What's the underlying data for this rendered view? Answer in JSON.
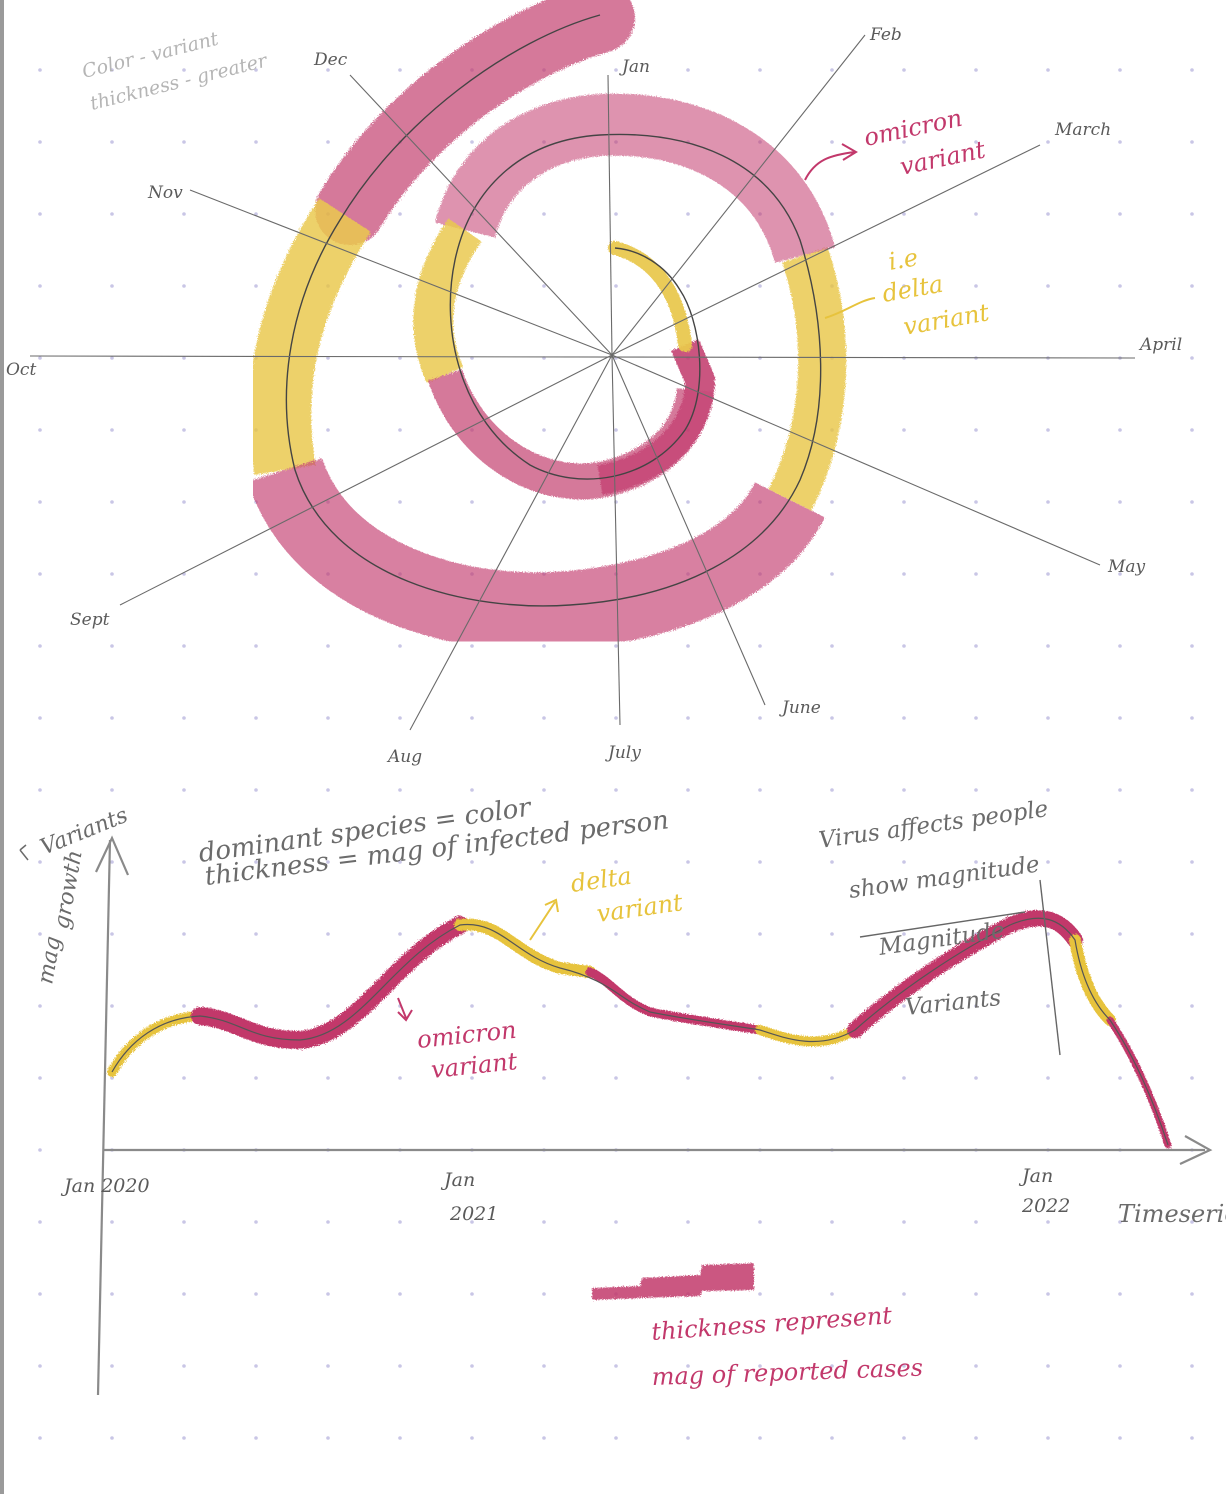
{
  "colors": {
    "omicron": "#c2386b",
    "delta": "#e7c33c",
    "pencil": "#666666",
    "dot_grid": "#c9c6e6"
  },
  "spiral": {
    "notes": [
      "Color - variant",
      "thickness - greater"
    ],
    "months": [
      "Jan",
      "Feb",
      "March",
      "April",
      "May",
      "June",
      "July",
      "Aug",
      "Sept",
      "Oct",
      "Nov",
      "Dec"
    ],
    "labels": {
      "omicron_line1": "omicron",
      "omicron_line2": "variant",
      "delta_line1": "i.e",
      "delta_line2": "delta",
      "delta_line3": "variant"
    }
  },
  "legend_note": {
    "line1": "dominant species = color",
    "line2": "thickness = mag of infected person"
  },
  "line_chart": {
    "y_label_line1": "growth",
    "y_label_line2": "mag",
    "y_arrow_label": "Variants",
    "x_title": "Timeseries",
    "x_ticks": [
      {
        "line1": "Jan 2020",
        "line2": ""
      },
      {
        "line1": "Jan",
        "line2": "2021"
      },
      {
        "line1": "Jan",
        "line2": "2022"
      }
    ],
    "delta_label_line1": "delta",
    "delta_label_line2": "variant",
    "omicron_label_line1": "omicron",
    "omicron_label_line2": "variant",
    "right_note_line1": "Virus affects people",
    "right_note_line2": "show magnitude",
    "right_note_line3": "Magnitude",
    "right_note_line4": "Variants"
  },
  "thickness_legend": {
    "line1": "thickness represent",
    "line2": "mag of reported cases"
  }
}
